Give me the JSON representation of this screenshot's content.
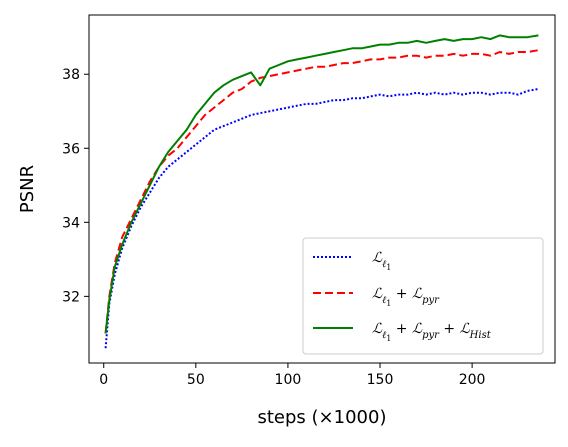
{
  "chart_data": {
    "type": "line",
    "title": "",
    "xlabel": "steps (×1000)",
    "ylabel": "PSNR",
    "xlim": [
      -8,
      245
    ],
    "ylim": [
      30.2,
      39.6
    ],
    "xticks": [
      0,
      50,
      100,
      150,
      200
    ],
    "yticks": [
      32,
      34,
      36,
      38
    ],
    "grid": false,
    "legend_position": "bottom-right",
    "series": [
      {
        "name": "ℒ_ℓ1",
        "color": "#0000ff",
        "style": "dotted",
        "x": [
          1,
          3,
          6,
          10,
          15,
          20,
          25,
          30,
          35,
          40,
          45,
          50,
          55,
          60,
          65,
          70,
          75,
          80,
          85,
          90,
          95,
          100,
          105,
          110,
          115,
          120,
          125,
          130,
          135,
          140,
          145,
          150,
          155,
          160,
          165,
          170,
          175,
          180,
          185,
          190,
          195,
          200,
          205,
          210,
          215,
          220,
          225,
          230,
          236
        ],
        "values": [
          30.6,
          31.8,
          32.6,
          33.3,
          33.9,
          34.4,
          34.8,
          35.2,
          35.5,
          35.7,
          35.9,
          36.1,
          36.3,
          36.5,
          36.6,
          36.7,
          36.8,
          36.9,
          36.95,
          37.0,
          37.05,
          37.1,
          37.15,
          37.2,
          37.2,
          37.25,
          37.3,
          37.3,
          37.35,
          37.35,
          37.4,
          37.45,
          37.4,
          37.45,
          37.45,
          37.5,
          37.45,
          37.5,
          37.45,
          37.5,
          37.45,
          37.5,
          37.5,
          37.45,
          37.5,
          37.5,
          37.45,
          37.55,
          37.6
        ]
      },
      {
        "name": "ℒ_ℓ1 + ℒ_pyr",
        "color": "#ff0000",
        "style": "dashed",
        "x": [
          1,
          3,
          6,
          10,
          15,
          20,
          25,
          30,
          35,
          40,
          45,
          50,
          55,
          60,
          65,
          70,
          75,
          80,
          85,
          90,
          95,
          100,
          105,
          110,
          115,
          120,
          125,
          130,
          135,
          140,
          145,
          150,
          155,
          160,
          165,
          170,
          175,
          180,
          185,
          190,
          195,
          200,
          205,
          210,
          215,
          220,
          225,
          230,
          236
        ],
        "values": [
          31.0,
          32.0,
          32.9,
          33.6,
          34.1,
          34.6,
          35.1,
          35.5,
          35.8,
          36.0,
          36.3,
          36.6,
          36.9,
          37.1,
          37.3,
          37.5,
          37.6,
          37.8,
          37.9,
          37.95,
          38.0,
          38.05,
          38.1,
          38.15,
          38.2,
          38.2,
          38.25,
          38.3,
          38.3,
          38.35,
          38.4,
          38.4,
          38.45,
          38.45,
          38.5,
          38.5,
          38.45,
          38.5,
          38.5,
          38.55,
          38.5,
          38.55,
          38.55,
          38.5,
          38.6,
          38.55,
          38.6,
          38.6,
          38.65
        ]
      },
      {
        "name": "ℒ_ℓ1 + ℒ_pyr + ℒ_Hist",
        "color": "#008000",
        "style": "solid",
        "x": [
          1,
          3,
          6,
          10,
          15,
          20,
          25,
          30,
          35,
          40,
          45,
          50,
          55,
          60,
          65,
          70,
          75,
          80,
          85,
          90,
          95,
          100,
          105,
          110,
          115,
          120,
          125,
          130,
          135,
          140,
          145,
          150,
          155,
          160,
          165,
          170,
          175,
          180,
          185,
          190,
          195,
          200,
          205,
          210,
          215,
          220,
          225,
          230,
          236
        ],
        "values": [
          31.0,
          31.9,
          32.8,
          33.4,
          34.0,
          34.5,
          35.0,
          35.5,
          35.9,
          36.2,
          36.5,
          36.9,
          37.2,
          37.5,
          37.7,
          37.85,
          37.95,
          38.05,
          37.7,
          38.15,
          38.25,
          38.35,
          38.4,
          38.45,
          38.5,
          38.55,
          38.6,
          38.65,
          38.7,
          38.7,
          38.75,
          38.8,
          38.8,
          38.85,
          38.85,
          38.9,
          38.85,
          38.9,
          38.95,
          38.9,
          38.95,
          38.95,
          39.0,
          38.95,
          39.05,
          39.0,
          39.0,
          39.0,
          39.05
        ]
      }
    ]
  }
}
